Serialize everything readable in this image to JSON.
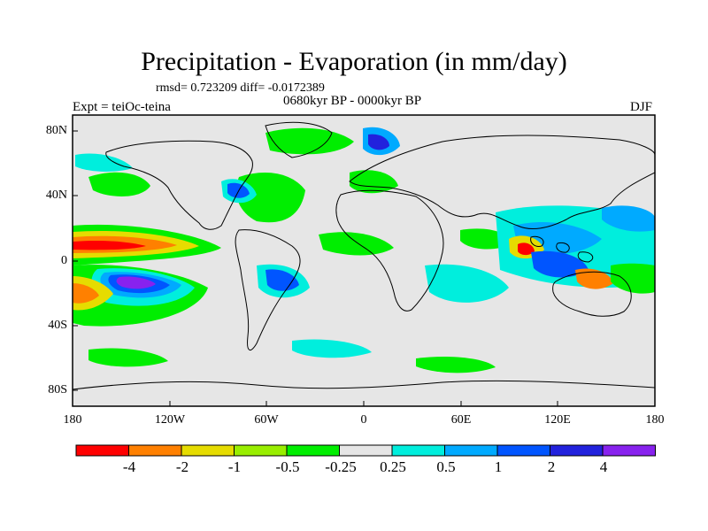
{
  "map": {
    "title": "Precipitation - Evaporation (in mm/day)",
    "stats": "rmsd= 0.723209   diff= -0.0172389",
    "subtitle": "0680kyr BP - 0000kyr BP",
    "experiment": "Expt = teiOc-teina",
    "season": "DJF",
    "latitude_labels": [
      "80N",
      "40N",
      "0",
      "40S",
      "80S"
    ],
    "longitude_labels": [
      "180",
      "120W",
      "60W",
      "0",
      "60E",
      "120E",
      "180"
    ]
  },
  "colorbar": {
    "labels": [
      "-4",
      "-2",
      "-1",
      "-0.5",
      "-0.25",
      "0.25",
      "0.5",
      "1",
      "2",
      "4"
    ],
    "colors": [
      "#ff0000",
      "#ff8000",
      "#e6dc00",
      "#99ee00",
      "#00ee00",
      "#e6e6e6",
      "#00eedd",
      "#00aaff",
      "#0055ff",
      "#2222dd",
      "#8822ee"
    ]
  },
  "colors": {
    "ocean_neutral": "#e6e6e6",
    "coast": "#000000"
  }
}
